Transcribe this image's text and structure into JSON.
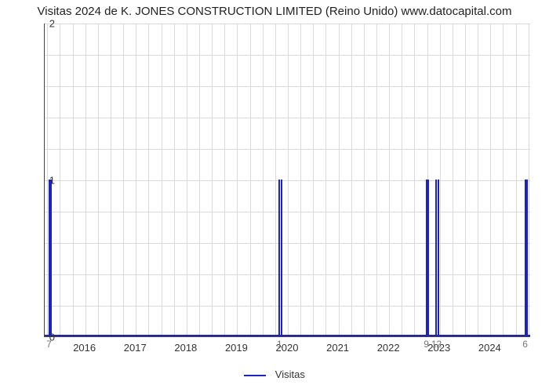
{
  "chart": {
    "type": "line",
    "title": "Visitas 2024 de K. JONES CONSTRUCTION LIMITED (Reino Unido) www.datocapital.com",
    "title_fontsize": 15,
    "background_color": "#ffffff",
    "grid_color": "#d9d9d9",
    "axis_color": "#444444",
    "line_color": "#1d22c3",
    "line_width": 2,
    "x": {
      "min": 2015.2,
      "max": 2024.8,
      "ticks": [
        2016,
        2017,
        2018,
        2019,
        2020,
        2021,
        2022,
        2023,
        2024
      ],
      "tick_labels": [
        "2016",
        "2017",
        "2018",
        "2019",
        "2020",
        "2021",
        "2022",
        "2023",
        "2024"
      ],
      "minor_step": 0.25,
      "label_fontsize": 13
    },
    "y": {
      "min": 0,
      "max": 2,
      "ticks": [
        0,
        1,
        2
      ],
      "tick_labels": [
        "0",
        "1",
        "2"
      ],
      "minor_count": 4,
      "label_fontsize": 13
    },
    "series": {
      "name": "Visitas",
      "baseline": 0,
      "spikes": [
        {
          "x": 2015.3,
          "value": 1,
          "label": "7",
          "width_years": 0.06
        },
        {
          "x": 2019.85,
          "value": 1,
          "label": "1",
          "width_years": 0.08
        },
        {
          "x": 2022.75,
          "value": 1,
          "label": "9",
          "width_years": 0.06
        },
        {
          "x": 2022.95,
          "value": 1,
          "label": "12",
          "width_years": 0.08
        },
        {
          "x": 2024.7,
          "value": 1,
          "label": "6",
          "width_years": 0.06
        }
      ]
    },
    "legend": {
      "label": "Visitas"
    },
    "value_label_color": "#777777",
    "value_label_fontsize": 12
  }
}
